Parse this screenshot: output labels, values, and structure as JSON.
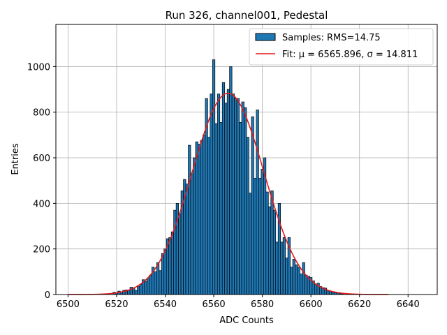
{
  "chart_data": {
    "type": "bar",
    "title": "Run 326, channel001, Pedestal",
    "xlabel": "ADC Counts",
    "ylabel": "Entries",
    "xlim": [
      6495,
      6652
    ],
    "ylim": [
      0,
      1185
    ],
    "grid": true,
    "x_ticks": [
      6500,
      6520,
      6540,
      6560,
      6580,
      6600,
      6620,
      6640
    ],
    "y_ticks": [
      0,
      200,
      400,
      600,
      800,
      1000
    ],
    "legend": {
      "placement": "top-right",
      "entries": [
        {
          "label": "Samples: RMS=14.75",
          "kind": "bar",
          "color": "#1f77b4"
        },
        {
          "label": "Fit: μ = 6565.896, σ = 14.811",
          "kind": "line",
          "color": "#e31a1c"
        }
      ]
    },
    "histogram": {
      "name": "Samples",
      "bin_width": 1,
      "color": "#1f77b4",
      "edgecolor": "#000000",
      "bins": [
        [
          6519,
          10
        ],
        [
          6520,
          8
        ],
        [
          6521,
          15
        ],
        [
          6522,
          12
        ],
        [
          6523,
          18
        ],
        [
          6524,
          20
        ],
        [
          6525,
          20
        ],
        [
          6526,
          32
        ],
        [
          6527,
          30
        ],
        [
          6528,
          18
        ],
        [
          6529,
          35
        ],
        [
          6530,
          45
        ],
        [
          6531,
          65
        ],
        [
          6532,
          58
        ],
        [
          6533,
          70
        ],
        [
          6534,
          85
        ],
        [
          6535,
          120
        ],
        [
          6536,
          100
        ],
        [
          6537,
          140
        ],
        [
          6538,
          105
        ],
        [
          6539,
          180
        ],
        [
          6540,
          200
        ],
        [
          6541,
          245
        ],
        [
          6542,
          250
        ],
        [
          6543,
          275
        ],
        [
          6544,
          370
        ],
        [
          6545,
          400
        ],
        [
          6546,
          355
        ],
        [
          6547,
          455
        ],
        [
          6548,
          505
        ],
        [
          6549,
          485
        ],
        [
          6550,
          655
        ],
        [
          6551,
          530
        ],
        [
          6552,
          600
        ],
        [
          6553,
          670
        ],
        [
          6554,
          660
        ],
        [
          6555,
          675
        ],
        [
          6556,
          700
        ],
        [
          6557,
          860
        ],
        [
          6558,
          690
        ],
        [
          6559,
          880
        ],
        [
          6560,
          1030
        ],
        [
          6561,
          750
        ],
        [
          6562,
          880
        ],
        [
          6563,
          755
        ],
        [
          6564,
          930
        ],
        [
          6565,
          840
        ],
        [
          6566,
          900
        ],
        [
          6567,
          1000
        ],
        [
          6568,
          880
        ],
        [
          6569,
          860
        ],
        [
          6570,
          860
        ],
        [
          6571,
          755
        ],
        [
          6572,
          845
        ],
        [
          6573,
          820
        ],
        [
          6574,
          690
        ],
        [
          6575,
          445
        ],
        [
          6576,
          780
        ],
        [
          6577,
          510
        ],
        [
          6578,
          810
        ],
        [
          6579,
          510
        ],
        [
          6580,
          550
        ],
        [
          6581,
          600
        ],
        [
          6582,
          450
        ],
        [
          6583,
          385
        ],
        [
          6584,
          455
        ],
        [
          6585,
          370
        ],
        [
          6586,
          230
        ],
        [
          6587,
          400
        ],
        [
          6588,
          230
        ],
        [
          6589,
          250
        ],
        [
          6590,
          160
        ],
        [
          6591,
          250
        ],
        [
          6592,
          120
        ],
        [
          6593,
          155
        ],
        [
          6594,
          130
        ],
        [
          6595,
          120
        ],
        [
          6596,
          90
        ],
        [
          6597,
          140
        ],
        [
          6598,
          85
        ],
        [
          6599,
          80
        ],
        [
          6600,
          75
        ],
        [
          6601,
          60
        ],
        [
          6602,
          45
        ],
        [
          6603,
          50
        ],
        [
          6604,
          35
        ],
        [
          6605,
          30
        ],
        [
          6606,
          28
        ],
        [
          6607,
          18
        ],
        [
          6608,
          15
        ],
        [
          6609,
          10
        ],
        [
          6610,
          8
        ],
        [
          6611,
          8
        ],
        [
          6612,
          4
        ],
        [
          6613,
          3
        ]
      ]
    },
    "fit": {
      "name": "Fit",
      "type": "gaussian",
      "mu": 6565.896,
      "sigma": 14.811,
      "amplitude": 883,
      "x_range": [
        6500,
        6632
      ],
      "color": "#e31a1c"
    }
  }
}
